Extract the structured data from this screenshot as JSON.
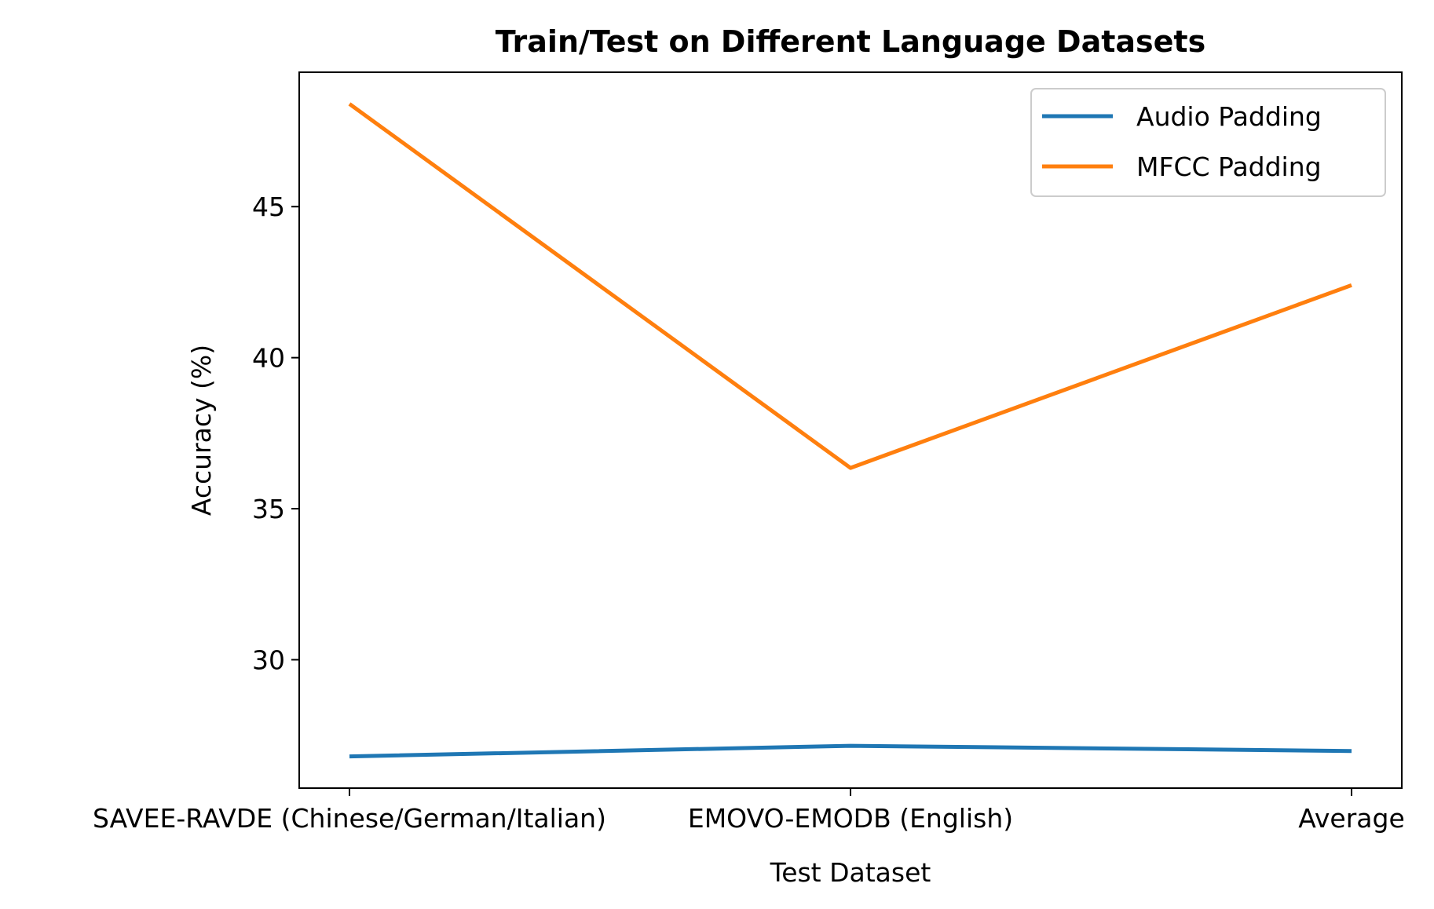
{
  "chart_data": {
    "type": "line",
    "title": "Train/Test on Different Language Datasets",
    "xlabel": "Test Dataset",
    "ylabel": "Accuracy (%)",
    "categories": [
      "SAVEE-RAVDE (Chinese/German/Italian)",
      "EMOVO-EMODB (English)",
      "Average"
    ],
    "series": [
      {
        "name": "Audio Padding",
        "color": "#1f77b4",
        "values": [
          26.8,
          27.15,
          26.98
        ]
      },
      {
        "name": "MFCC Padding",
        "color": "#ff7f0e",
        "values": [
          48.4,
          36.35,
          42.4
        ]
      }
    ],
    "ylim": [
      25.75,
      49.45
    ],
    "yticks": [
      30,
      35,
      40,
      45
    ],
    "grid": false,
    "legend": "upper-right"
  }
}
